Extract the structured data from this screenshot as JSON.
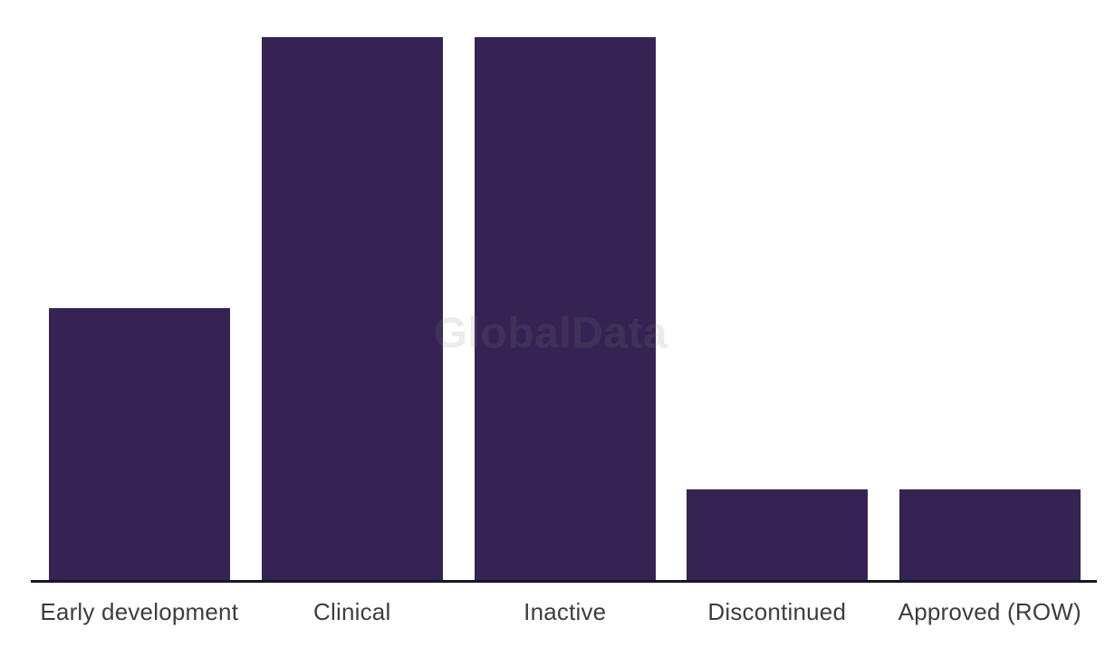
{
  "watermark": {
    "text": "GlobalData",
    "blend_color": "#141414"
  },
  "chart_data": {
    "type": "bar",
    "title": "",
    "xlabel": "",
    "ylabel": "",
    "categories": [
      "Early development",
      "Clinical",
      "Inactive",
      "Discontinued",
      "Approved (ROW)"
    ],
    "values": [
      3,
      6,
      6,
      1,
      1
    ],
    "ylim": [
      0,
      6
    ],
    "grid": false,
    "legend": false,
    "y_axis_visible": false,
    "bar_color": "#352453",
    "axis_line_color": "#161629",
    "label_color": "#3d3d3d",
    "background_color": "#ffffff"
  }
}
